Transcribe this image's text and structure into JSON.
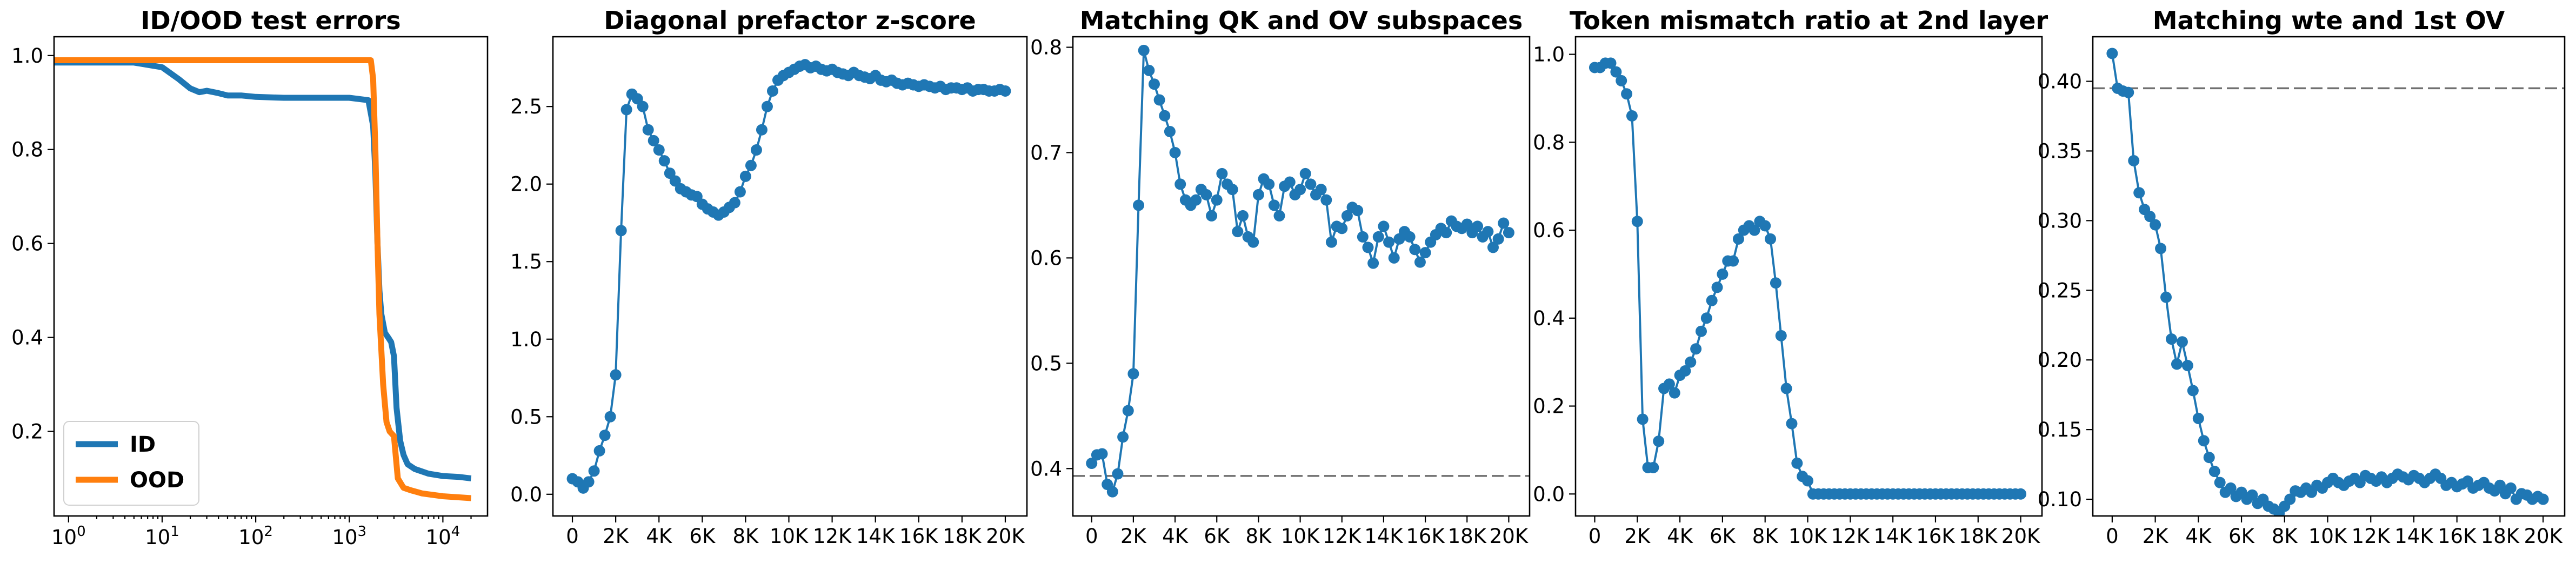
{
  "chart_data": [
    {
      "type": "line",
      "title": "ID/OOD test errors",
      "xscale": "log",
      "xlim": [
        0.7,
        30000
      ],
      "ylim": [
        0.02,
        1.04
      ],
      "x_ticks": [
        1,
        10,
        100,
        1000,
        10000
      ],
      "x_ticklabels": [
        [
          "10",
          "0"
        ],
        [
          "10",
          "1"
        ],
        [
          "10",
          "2"
        ],
        [
          "10",
          "3"
        ],
        [
          "10",
          "4"
        ]
      ],
      "y_ticks": [
        0.2,
        0.4,
        0.6,
        0.8,
        1.0
      ],
      "y_ticklabels": [
        "0.2",
        "0.4",
        "0.6",
        "0.8",
        "1.0"
      ],
      "legend": "lower-left",
      "series": [
        {
          "name": "ID",
          "color": "#1f77b4",
          "width": 11,
          "x": [
            0.7,
            5,
            10,
            15,
            20,
            25,
            30,
            40,
            50,
            70,
            100,
            200,
            500,
            1000,
            1600,
            1800,
            1900,
            2000,
            2100,
            2200,
            2400,
            2600,
            2800,
            3000,
            3200,
            3500,
            3800,
            4200,
            5000,
            7000,
            10000,
            15000,
            20000
          ],
          "y": [
            0.985,
            0.985,
            0.975,
            0.95,
            0.93,
            0.922,
            0.925,
            0.92,
            0.915,
            0.915,
            0.912,
            0.91,
            0.91,
            0.91,
            0.905,
            0.85,
            0.75,
            0.6,
            0.5,
            0.45,
            0.41,
            0.4,
            0.39,
            0.36,
            0.25,
            0.18,
            0.15,
            0.13,
            0.12,
            0.11,
            0.105,
            0.103,
            0.1
          ]
        },
        {
          "name": "OOD",
          "color": "#ff7f0e",
          "width": 11,
          "x": [
            0.7,
            10,
            100,
            1000,
            1700,
            1800,
            1900,
            2000,
            2100,
            2300,
            2500,
            2700,
            3000,
            3300,
            3800,
            4500,
            6000,
            10000,
            20000
          ],
          "y": [
            0.99,
            0.99,
            0.99,
            0.99,
            0.99,
            0.95,
            0.8,
            0.6,
            0.45,
            0.3,
            0.22,
            0.2,
            0.19,
            0.1,
            0.08,
            0.075,
            0.068,
            0.062,
            0.058
          ]
        }
      ]
    },
    {
      "type": "line",
      "title": "Diagonal prefactor z-score",
      "xlim": [
        -900,
        21000
      ],
      "ylim": [
        -0.14,
        2.95
      ],
      "x_ticks": [
        0,
        2000,
        4000,
        6000,
        8000,
        10000,
        12000,
        14000,
        16000,
        18000,
        20000
      ],
      "x_ticklabels": [
        "0",
        "2K",
        "4K",
        "6K",
        "8K",
        "10K",
        "12K",
        "14K",
        "16K",
        "18K",
        "20K"
      ],
      "y_ticks": [
        0,
        0.5,
        1.0,
        1.5,
        2.0,
        2.5
      ],
      "y_ticklabels": [
        "0.0",
        "0.5",
        "1.0",
        "1.5",
        "2.0",
        "2.5"
      ],
      "markers": true,
      "series": [
        {
          "color": "#1f77b4",
          "x": [
            0,
            250,
            500,
            750,
            1000,
            1250,
            1500,
            1750,
            2000,
            2250,
            2500,
            2750,
            3000,
            3250,
            3500,
            3750,
            4000,
            4250,
            4500,
            4750,
            5000,
            5250,
            5500,
            5750,
            6000,
            6250,
            6500,
            6750,
            7000,
            7250,
            7500,
            7750,
            8000,
            8250,
            8500,
            8750,
            9000,
            9250,
            9500,
            9750,
            10000,
            10250,
            10500,
            10750,
            11000,
            11250,
            11500,
            11750,
            12000,
            12250,
            12500,
            12750,
            13000,
            13250,
            13500,
            13750,
            14000,
            14250,
            14500,
            14750,
            15000,
            15250,
            15500,
            15750,
            16000,
            16250,
            16500,
            16750,
            17000,
            17250,
            17500,
            17750,
            18000,
            18250,
            18500,
            18750,
            19000,
            19250,
            19500,
            19750,
            20000
          ],
          "y": [
            0.1,
            0.08,
            0.04,
            0.08,
            0.15,
            0.28,
            0.38,
            0.5,
            0.77,
            1.7,
            2.48,
            2.58,
            2.55,
            2.5,
            2.35,
            2.28,
            2.22,
            2.15,
            2.07,
            2.02,
            1.97,
            1.95,
            1.93,
            1.92,
            1.87,
            1.84,
            1.82,
            1.8,
            1.82,
            1.85,
            1.88,
            1.95,
            2.05,
            2.12,
            2.22,
            2.35,
            2.5,
            2.6,
            2.67,
            2.7,
            2.72,
            2.74,
            2.76,
            2.77,
            2.75,
            2.76,
            2.74,
            2.73,
            2.74,
            2.72,
            2.71,
            2.7,
            2.72,
            2.7,
            2.69,
            2.68,
            2.7,
            2.67,
            2.66,
            2.67,
            2.65,
            2.64,
            2.65,
            2.64,
            2.63,
            2.64,
            2.63,
            2.62,
            2.63,
            2.61,
            2.62,
            2.62,
            2.61,
            2.62,
            2.6,
            2.61,
            2.61,
            2.6,
            2.6,
            2.61,
            2.6
          ]
        }
      ]
    },
    {
      "type": "line",
      "title": "Matching QK and OV subspaces",
      "xlim": [
        -900,
        21000
      ],
      "ylim": [
        0.355,
        0.81
      ],
      "x_ticks": [
        0,
        2000,
        4000,
        6000,
        8000,
        10000,
        12000,
        14000,
        16000,
        18000,
        20000
      ],
      "x_ticklabels": [
        "0",
        "2K",
        "4K",
        "6K",
        "8K",
        "10K",
        "12K",
        "14K",
        "16K",
        "18K",
        "20K"
      ],
      "y_ticks": [
        0.4,
        0.5,
        0.6,
        0.7,
        0.8
      ],
      "y_ticklabels": [
        "0.4",
        "0.5",
        "0.6",
        "0.7",
        "0.8"
      ],
      "markers": true,
      "hline": 0.393,
      "series": [
        {
          "color": "#1f77b4",
          "x": [
            0,
            250,
            500,
            750,
            1000,
            1250,
            1500,
            1750,
            2000,
            2250,
            2500,
            2750,
            3000,
            3250,
            3500,
            3750,
            4000,
            4250,
            4500,
            4750,
            5000,
            5250,
            5500,
            5750,
            6000,
            6250,
            6500,
            6750,
            7000,
            7250,
            7500,
            7750,
            8000,
            8250,
            8500,
            8750,
            9000,
            9250,
            9500,
            9750,
            10000,
            10250,
            10500,
            10750,
            11000,
            11250,
            11500,
            11750,
            12000,
            12250,
            12500,
            12750,
            13000,
            13250,
            13500,
            13750,
            14000,
            14250,
            14500,
            14750,
            15000,
            15250,
            15500,
            15750,
            16000,
            16250,
            16500,
            16750,
            17000,
            17250,
            17500,
            17750,
            18000,
            18250,
            18500,
            18750,
            19000,
            19250,
            19500,
            19750,
            20000
          ],
          "y": [
            0.405,
            0.413,
            0.414,
            0.385,
            0.378,
            0.395,
            0.43,
            0.455,
            0.49,
            0.65,
            0.797,
            0.778,
            0.765,
            0.75,
            0.735,
            0.72,
            0.7,
            0.67,
            0.655,
            0.65,
            0.655,
            0.665,
            0.66,
            0.64,
            0.655,
            0.68,
            0.67,
            0.665,
            0.625,
            0.64,
            0.62,
            0.615,
            0.66,
            0.675,
            0.67,
            0.65,
            0.64,
            0.668,
            0.672,
            0.66,
            0.665,
            0.68,
            0.67,
            0.66,
            0.665,
            0.655,
            0.615,
            0.63,
            0.628,
            0.64,
            0.648,
            0.645,
            0.62,
            0.61,
            0.595,
            0.62,
            0.63,
            0.615,
            0.6,
            0.618,
            0.625,
            0.62,
            0.608,
            0.596,
            0.605,
            0.615,
            0.622,
            0.628,
            0.624,
            0.635,
            0.63,
            0.628,
            0.632,
            0.624,
            0.63,
            0.62,
            0.625,
            0.61,
            0.618,
            0.633,
            0.624
          ]
        }
      ]
    },
    {
      "type": "line",
      "title": "Token mismatch ratio at 2nd layer",
      "xlim": [
        -900,
        21000
      ],
      "ylim": [
        -0.05,
        1.04
      ],
      "x_ticks": [
        0,
        2000,
        4000,
        6000,
        8000,
        10000,
        12000,
        14000,
        16000,
        18000,
        20000
      ],
      "x_ticklabels": [
        "0",
        "2K",
        "4K",
        "6K",
        "8K",
        "10K",
        "12K",
        "14K",
        "16K",
        "18K",
        "20K"
      ],
      "y_ticks": [
        0,
        0.2,
        0.4,
        0.6,
        0.8,
        1.0
      ],
      "y_ticklabels": [
        "0.0",
        "0.2",
        "0.4",
        "0.6",
        "0.8",
        "1.0"
      ],
      "markers": true,
      "series": [
        {
          "color": "#1f77b4",
          "x": [
            0,
            250,
            500,
            750,
            1000,
            1250,
            1500,
            1750,
            2000,
            2250,
            2500,
            2750,
            3000,
            3250,
            3500,
            3750,
            4000,
            4250,
            4500,
            4750,
            5000,
            5250,
            5500,
            5750,
            6000,
            6250,
            6500,
            6750,
            7000,
            7250,
            7500,
            7750,
            8000,
            8250,
            8500,
            8750,
            9000,
            9250,
            9500,
            9750,
            10000,
            10250,
            10500,
            10750,
            11000,
            11250,
            11500,
            11750,
            12000,
            12250,
            12500,
            12750,
            13000,
            13250,
            13500,
            13750,
            14000,
            14250,
            14500,
            14750,
            15000,
            15250,
            15500,
            15750,
            16000,
            16250,
            16500,
            16750,
            17000,
            17250,
            17500,
            17750,
            18000,
            18250,
            18500,
            18750,
            19000,
            19250,
            19500,
            19750,
            20000
          ],
          "y": [
            0.97,
            0.97,
            0.98,
            0.98,
            0.96,
            0.94,
            0.91,
            0.86,
            0.62,
            0.17,
            0.06,
            0.06,
            0.12,
            0.24,
            0.25,
            0.23,
            0.27,
            0.28,
            0.3,
            0.33,
            0.37,
            0.4,
            0.44,
            0.47,
            0.5,
            0.53,
            0.53,
            0.58,
            0.6,
            0.61,
            0.6,
            0.62,
            0.61,
            0.58,
            0.48,
            0.36,
            0.24,
            0.16,
            0.07,
            0.04,
            0.03,
            0.0,
            0.0,
            0.0,
            0.0,
            0.0,
            0.0,
            0.0,
            0.0,
            0.0,
            0.0,
            0.0,
            0.0,
            0.0,
            0.0,
            0.0,
            0.0,
            0.0,
            0.0,
            0.0,
            0.0,
            0.0,
            0.0,
            0.0,
            0.0,
            0.0,
            0.0,
            0.0,
            0.0,
            0.0,
            0.0,
            0.0,
            0.0,
            0.0,
            0.0,
            0.0,
            0.0,
            0.0,
            0.0,
            0.0,
            0.0
          ]
        }
      ]
    },
    {
      "type": "line",
      "title": "Matching wte and 1st OV",
      "xlim": [
        -900,
        21000
      ],
      "ylim": [
        0.088,
        0.432
      ],
      "x_ticks": [
        0,
        2000,
        4000,
        6000,
        8000,
        10000,
        12000,
        14000,
        16000,
        18000,
        20000
      ],
      "x_ticklabels": [
        "0",
        "2K",
        "4K",
        "6K",
        "8K",
        "10K",
        "12K",
        "14K",
        "16K",
        "18K",
        "20K"
      ],
      "y_ticks": [
        0.1,
        0.15,
        0.2,
        0.25,
        0.3,
        0.35,
        0.4
      ],
      "y_ticklabels": [
        "0.10",
        "0.15",
        "0.20",
        "0.25",
        "0.30",
        "0.35",
        "0.40"
      ],
      "markers": true,
      "hline": 0.395,
      "series": [
        {
          "color": "#1f77b4",
          "x": [
            0,
            250,
            500,
            750,
            1000,
            1250,
            1500,
            1750,
            2000,
            2250,
            2500,
            2750,
            3000,
            3250,
            3500,
            3750,
            4000,
            4250,
            4500,
            4750,
            5000,
            5250,
            5500,
            5750,
            6000,
            6250,
            6500,
            6750,
            7000,
            7250,
            7500,
            7750,
            8000,
            8250,
            8500,
            8750,
            9000,
            9250,
            9500,
            9750,
            10000,
            10250,
            10500,
            10750,
            11000,
            11250,
            11500,
            11750,
            12000,
            12250,
            12500,
            12750,
            13000,
            13250,
            13500,
            13750,
            14000,
            14250,
            14500,
            14750,
            15000,
            15250,
            15500,
            15750,
            16000,
            16250,
            16500,
            16750,
            17000,
            17250,
            17500,
            17750,
            18000,
            18250,
            18500,
            18750,
            19000,
            19250,
            19500,
            19750,
            20000
          ],
          "y": [
            0.42,
            0.395,
            0.393,
            0.392,
            0.343,
            0.32,
            0.308,
            0.303,
            0.297,
            0.28,
            0.245,
            0.215,
            0.197,
            0.213,
            0.196,
            0.178,
            0.158,
            0.142,
            0.13,
            0.12,
            0.112,
            0.105,
            0.108,
            0.102,
            0.105,
            0.1,
            0.103,
            0.097,
            0.1,
            0.095,
            0.093,
            0.09,
            0.095,
            0.1,
            0.106,
            0.105,
            0.108,
            0.105,
            0.11,
            0.108,
            0.112,
            0.115,
            0.112,
            0.11,
            0.113,
            0.115,
            0.112,
            0.117,
            0.115,
            0.113,
            0.116,
            0.112,
            0.115,
            0.118,
            0.116,
            0.114,
            0.117,
            0.115,
            0.112,
            0.115,
            0.118,
            0.115,
            0.11,
            0.112,
            0.109,
            0.111,
            0.113,
            0.108,
            0.11,
            0.112,
            0.108,
            0.106,
            0.11,
            0.104,
            0.108,
            0.1,
            0.104,
            0.103,
            0.1,
            0.102,
            0.1
          ]
        }
      ]
    }
  ]
}
